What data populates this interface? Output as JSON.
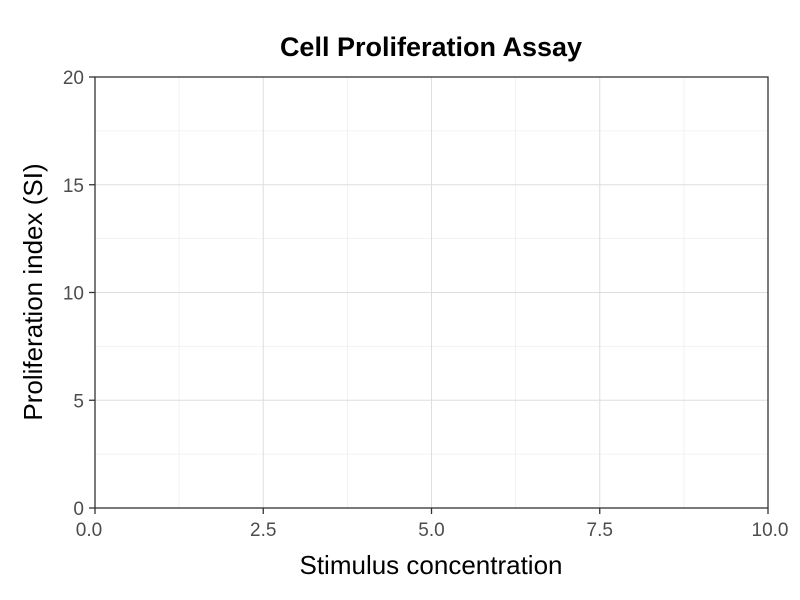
{
  "chart_data": {
    "type": "scatter",
    "title": "Cell Proliferation Assay",
    "xlabel": "Stimulus concentration",
    "ylabel": "Proliferation index (SI)",
    "xlim": [
      0,
      10
    ],
    "ylim": [
      0,
      20
    ],
    "x_ticks": [
      "0.0",
      "2.5",
      "5.0",
      "7.5",
      "10.0"
    ],
    "y_ticks": [
      "0",
      "5",
      "10",
      "15",
      "20"
    ],
    "series": [],
    "grid": true,
    "legend": "none"
  }
}
